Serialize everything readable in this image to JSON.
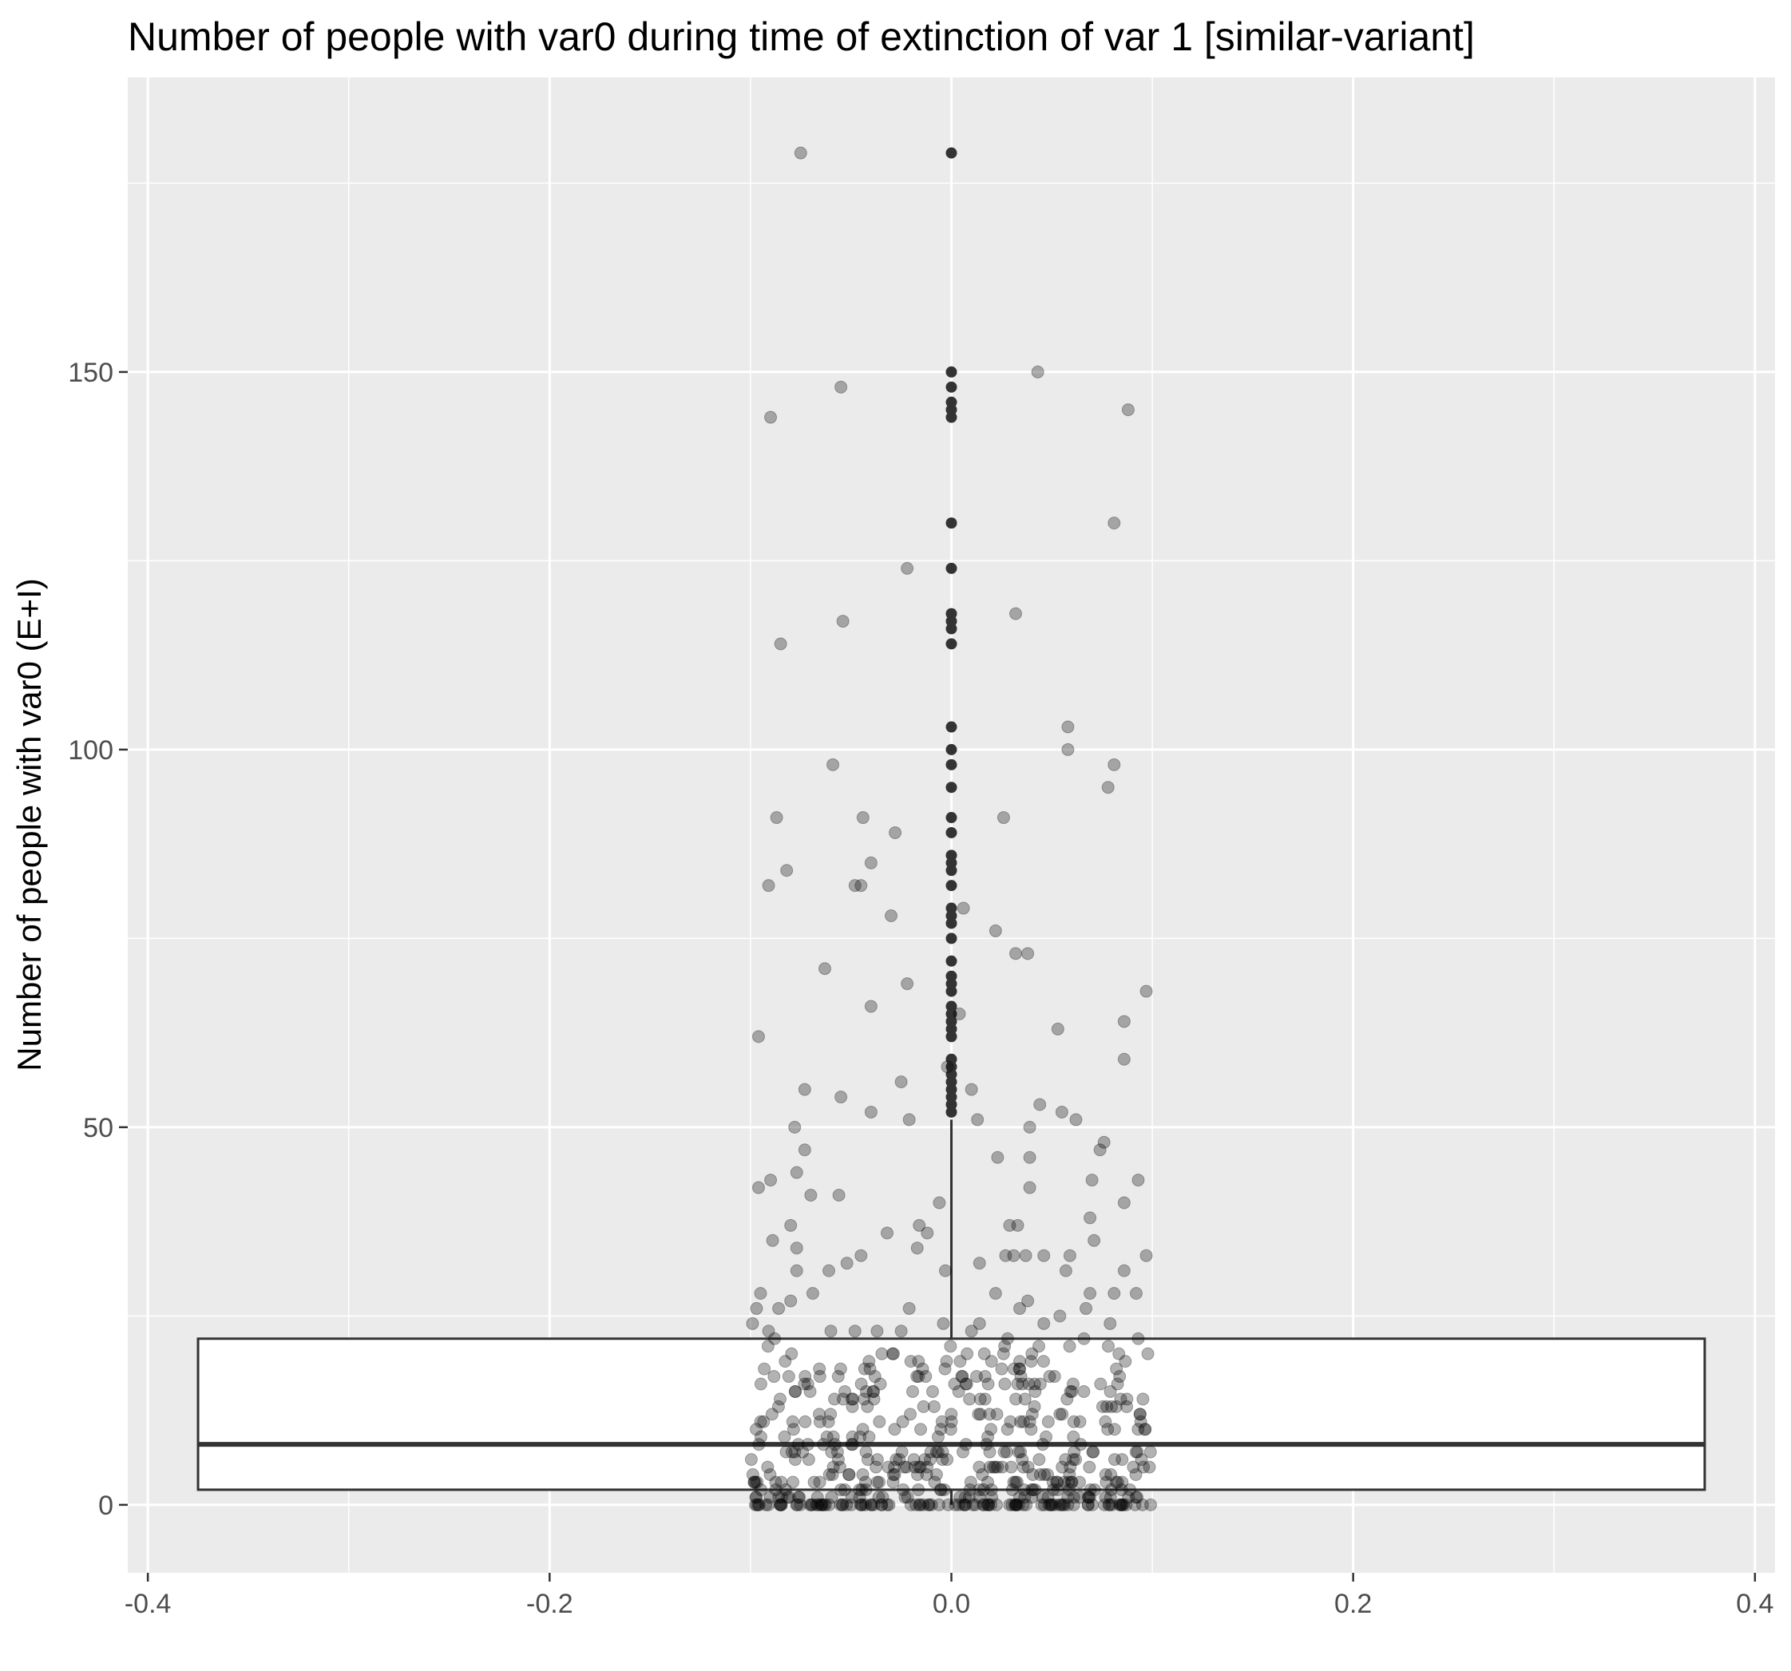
{
  "chart_data": {
    "type": "boxplot-with-jitter",
    "title": "Number of people with var0 during time of extinction of var 1 [similar-variant]",
    "xlabel": "",
    "ylabel": "Number of people with var0 (E+I)",
    "xlim": [
      -0.41,
      0.41
    ],
    "ylim": [
      -9,
      189
    ],
    "x_ticks": [
      -0.4,
      -0.2,
      0.0,
      0.2,
      0.4
    ],
    "x_tick_labels": [
      "-0.4",
      "-0.2",
      "0.0",
      "0.2",
      "0.4"
    ],
    "y_ticks": [
      0,
      50,
      100,
      150
    ],
    "y_tick_labels": [
      "0",
      "50",
      "100",
      "150"
    ],
    "grid": true,
    "background": "#ebebeb",
    "box": {
      "x_left": -0.375,
      "x_right": 0.375,
      "q1": 2,
      "median": 8,
      "q3": 22,
      "whisker_low": 0,
      "whisker_high": 51
    },
    "outliers_at_center": [
      52,
      53,
      54,
      55,
      56,
      57,
      58,
      59,
      62,
      63,
      64,
      65,
      66,
      68,
      69,
      70,
      72,
      75,
      77,
      78,
      79,
      82,
      84,
      85,
      86,
      89,
      91,
      95,
      98,
      100,
      103,
      114,
      116,
      117,
      118,
      124,
      130,
      144,
      145,
      146,
      148,
      150,
      179
    ],
    "jitter_points": [
      [
        -0.075,
        179
      ],
      [
        0.043,
        150
      ],
      [
        -0.055,
        148
      ],
      [
        0.088,
        145
      ],
      [
        -0.09,
        144
      ],
      [
        0.081,
        130
      ],
      [
        -0.022,
        124
      ],
      [
        0.032,
        118
      ],
      [
        -0.054,
        117
      ],
      [
        -0.085,
        114
      ],
      [
        0.058,
        103
      ],
      [
        0.058,
        100
      ],
      [
        -0.059,
        98
      ],
      [
        0.081,
        98
      ],
      [
        0.078,
        95
      ],
      [
        -0.087,
        91
      ],
      [
        -0.044,
        91
      ],
      [
        0.026,
        91
      ],
      [
        -0.028,
        89
      ],
      [
        -0.04,
        85
      ],
      [
        -0.082,
        84
      ],
      [
        -0.091,
        82
      ],
      [
        -0.045,
        82
      ],
      [
        -0.048,
        82
      ],
      [
        0.006,
        79
      ],
      [
        -0.03,
        78
      ],
      [
        0.022,
        76
      ],
      [
        0.032,
        73
      ],
      [
        0.038,
        73
      ],
      [
        -0.063,
        71
      ],
      [
        -0.022,
        69
      ],
      [
        0.097,
        68
      ],
      [
        -0.04,
        66
      ],
      [
        0.004,
        65
      ],
      [
        0.086,
        64
      ],
      [
        0.053,
        63
      ],
      [
        -0.096,
        62
      ],
      [
        0.086,
        59
      ],
      [
        -0.002,
        58
      ],
      [
        -0.025,
        56
      ],
      [
        -0.073,
        55
      ],
      [
        0.01,
        55
      ],
      [
        -0.055,
        54
      ],
      [
        0.044,
        53
      ],
      [
        -0.04,
        52
      ],
      [
        0.055,
        52
      ],
      [
        -0.021,
        51
      ],
      [
        0.013,
        51
      ],
      [
        0.062,
        51
      ],
      [
        -0.078,
        50
      ],
      [
        0.039,
        50
      ],
      [
        0.076,
        48
      ],
      [
        -0.073,
        47
      ],
      [
        0.074,
        47
      ],
      [
        0.039,
        46
      ],
      [
        0.023,
        46
      ],
      [
        -0.077,
        44
      ],
      [
        -0.09,
        43
      ],
      [
        0.07,
        43
      ],
      [
        0.093,
        43
      ],
      [
        -0.096,
        42
      ],
      [
        0.039,
        42
      ],
      [
        -0.07,
        41
      ],
      [
        -0.056,
        41
      ],
      [
        0.086,
        40
      ],
      [
        -0.006,
        40
      ],
      [
        0.069,
        38
      ],
      [
        -0.08,
        37
      ],
      [
        -0.016,
        37
      ],
      [
        0.029,
        37
      ],
      [
        0.033,
        37
      ],
      [
        -0.012,
        36
      ],
      [
        -0.032,
        36
      ],
      [
        -0.089,
        35
      ],
      [
        0.071,
        35
      ],
      [
        -0.077,
        34
      ],
      [
        -0.017,
        34
      ],
      [
        -0.045,
        33
      ],
      [
        0.027,
        33
      ],
      [
        0.031,
        33
      ],
      [
        0.037,
        33
      ],
      [
        0.046,
        33
      ],
      [
        0.059,
        33
      ],
      [
        0.097,
        33
      ],
      [
        -0.052,
        32
      ],
      [
        0.014,
        32
      ],
      [
        -0.061,
        31
      ],
      [
        -0.077,
        31
      ],
      [
        0.057,
        31
      ],
      [
        0.086,
        31
      ],
      [
        -0.003,
        31
      ],
      [
        -0.095,
        28
      ],
      [
        0.022,
        28
      ],
      [
        0.069,
        28
      ],
      [
        0.081,
        28
      ],
      [
        0.092,
        28
      ],
      [
        -0.069,
        28
      ],
      [
        -0.08,
        27
      ],
      [
        0.038,
        27
      ],
      [
        -0.021,
        26
      ],
      [
        0.034,
        26
      ],
      [
        -0.097,
        26
      ],
      [
        -0.086,
        26
      ],
      [
        0.067,
        26
      ],
      [
        0.054,
        25
      ],
      [
        -0.099,
        24
      ],
      [
        0.014,
        24
      ],
      [
        -0.004,
        24
      ],
      [
        0.046,
        24
      ],
      [
        0.079,
        24
      ],
      [
        -0.091,
        23
      ],
      [
        -0.06,
        23
      ],
      [
        -0.048,
        23
      ],
      [
        -0.037,
        23
      ],
      [
        -0.025,
        23
      ],
      [
        0.01,
        23
      ],
      [
        -0.088,
        22
      ],
      [
        0.028,
        22
      ],
      [
        0.066,
        22
      ],
      [
        0.093,
        22
      ]
    ],
    "dense_band": {
      "x_range": [
        -0.1,
        0.1
      ],
      "y_range": [
        0,
        21
      ]
    }
  }
}
